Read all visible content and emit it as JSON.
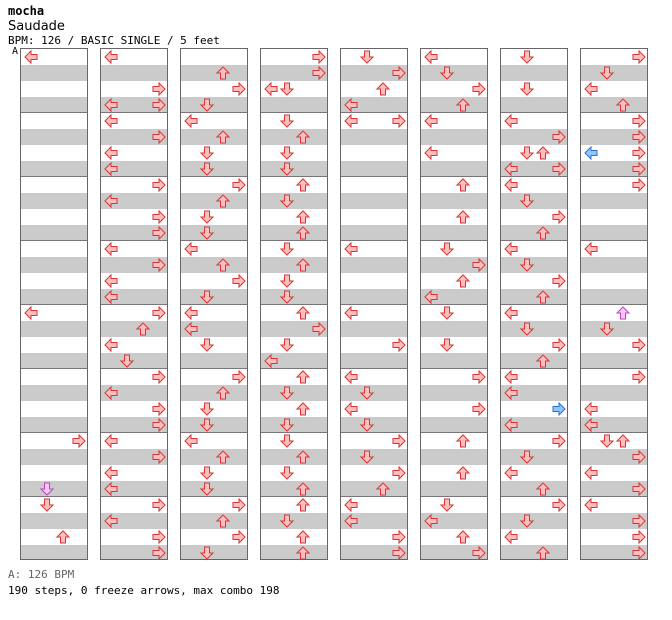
{
  "header": {
    "artist": "mocha",
    "title": "Saudade",
    "info": "BPM: 126 / BASIC SINGLE / 5 feet"
  },
  "chart": {
    "section_marker": "A",
    "columns": 8,
    "rows_per_column": 32,
    "colors": {
      "step": "#ffc0c0",
      "stroke": "#e03030",
      "blue": "#8cc8ff",
      "blue_stroke": "#3070d0",
      "purple": "#ffc8ff",
      "purple_stroke": "#c040c0"
    },
    "columns_data": [
      [
        {
          "r": 0,
          "d": "L"
        }
      ],
      [
        {
          "r": 0,
          "d": "L"
        },
        {
          "r": 2,
          "d": "R"
        },
        {
          "r": 3,
          "d": "L"
        },
        {
          "r": 3,
          "d": "R"
        },
        {
          "r": 4,
          "d": "L"
        },
        {
          "r": 5,
          "d": "R"
        },
        {
          "r": 6,
          "d": "L"
        },
        {
          "r": 7,
          "d": "L"
        },
        {
          "r": 8,
          "d": "R"
        },
        {
          "r": 9,
          "d": "L"
        },
        {
          "r": 10,
          "d": "R"
        },
        {
          "r": 11,
          "d": "R"
        },
        {
          "r": 12,
          "d": "L"
        },
        {
          "r": 13,
          "d": "R"
        },
        {
          "r": 14,
          "d": "L"
        },
        {
          "r": 15,
          "d": "L"
        },
        {
          "r": 16,
          "d": "R"
        },
        {
          "r": 17,
          "d": "U"
        },
        {
          "r": 18,
          "d": "L"
        },
        {
          "r": 19,
          "d": "D"
        },
        {
          "r": 20,
          "d": "R"
        },
        {
          "r": 21,
          "d": "L"
        },
        {
          "r": 22,
          "d": "R"
        },
        {
          "r": 23,
          "d": "R"
        },
        {
          "r": 24,
          "d": "L"
        },
        {
          "r": 25,
          "d": "R"
        },
        {
          "r": 26,
          "d": "L"
        },
        {
          "r": 27,
          "d": "L"
        },
        {
          "r": 28,
          "d": "R"
        },
        {
          "r": 29,
          "d": "L"
        },
        {
          "r": 30,
          "d": "R"
        },
        {
          "r": 31,
          "d": "R"
        }
      ],
      [
        {
          "r": 1,
          "d": "U"
        },
        {
          "r": 2,
          "d": "R"
        },
        {
          "r": 3,
          "d": "D"
        },
        {
          "r": 4,
          "d": "L"
        },
        {
          "r": 5,
          "d": "U"
        },
        {
          "r": 6,
          "d": "D"
        },
        {
          "r": 7,
          "d": "D"
        },
        {
          "r": 8,
          "d": "R"
        },
        {
          "r": 9,
          "d": "U"
        },
        {
          "r": 10,
          "d": "D"
        },
        {
          "r": 11,
          "d": "D"
        },
        {
          "r": 12,
          "d": "L"
        },
        {
          "r": 13,
          "d": "U"
        },
        {
          "r": 14,
          "d": "R"
        },
        {
          "r": 15,
          "d": "D"
        },
        {
          "r": 16,
          "d": "L"
        },
        {
          "r": 17,
          "d": "L"
        },
        {
          "r": 18,
          "d": "D"
        },
        {
          "r": 20,
          "d": "R"
        },
        {
          "r": 21,
          "d": "U"
        },
        {
          "r": 22,
          "d": "D"
        },
        {
          "r": 23,
          "d": "D"
        },
        {
          "r": 24,
          "d": "L"
        },
        {
          "r": 25,
          "d": "U"
        },
        {
          "r": 26,
          "d": "D"
        },
        {
          "r": 27,
          "d": "D"
        },
        {
          "r": 28,
          "d": "R"
        },
        {
          "r": 29,
          "d": "U"
        },
        {
          "r": 30,
          "d": "R"
        },
        {
          "r": 31,
          "d": "D"
        }
      ],
      [
        {
          "r": 0,
          "d": "R"
        },
        {
          "r": 1,
          "d": "R"
        },
        {
          "r": 2,
          "d": "L"
        },
        {
          "r": 2,
          "d": "D"
        },
        {
          "r": 4,
          "d": "D"
        },
        {
          "r": 5,
          "d": "U"
        },
        {
          "r": 6,
          "d": "D"
        },
        {
          "r": 7,
          "d": "D"
        },
        {
          "r": 8,
          "d": "U"
        },
        {
          "r": 9,
          "d": "D"
        },
        {
          "r": 10,
          "d": "U"
        },
        {
          "r": 11,
          "d": "U"
        },
        {
          "r": 12,
          "d": "D"
        },
        {
          "r": 13,
          "d": "U"
        },
        {
          "r": 14,
          "d": "D"
        },
        {
          "r": 15,
          "d": "D"
        },
        {
          "r": 16,
          "d": "U"
        },
        {
          "r": 17,
          "d": "R"
        },
        {
          "r": 18,
          "d": "D"
        },
        {
          "r": 19,
          "d": "L"
        },
        {
          "r": 20,
          "d": "U"
        },
        {
          "r": 21,
          "d": "D"
        },
        {
          "r": 22,
          "d": "U"
        },
        {
          "r": 23,
          "d": "D"
        },
        {
          "r": 24,
          "d": "D"
        },
        {
          "r": 25,
          "d": "U"
        },
        {
          "r": 26,
          "d": "D"
        },
        {
          "r": 27,
          "d": "U"
        },
        {
          "r": 28,
          "d": "U"
        },
        {
          "r": 29,
          "d": "D"
        },
        {
          "r": 30,
          "d": "U"
        },
        {
          "r": 31,
          "d": "U"
        }
      ],
      [
        {
          "r": 0,
          "d": "D"
        },
        {
          "r": 1,
          "d": "R"
        },
        {
          "r": 2,
          "d": "U"
        },
        {
          "r": 3,
          "d": "L"
        },
        {
          "r": 4,
          "d": "L"
        },
        {
          "r": 4,
          "d": "R"
        },
        {
          "r": 12,
          "d": "L"
        },
        {
          "r": 16,
          "d": "L"
        },
        {
          "r": 18,
          "d": "R"
        },
        {
          "r": 20,
          "d": "L"
        },
        {
          "r": 21,
          "d": "D"
        },
        {
          "r": 22,
          "d": "L"
        },
        {
          "r": 23,
          "d": "D"
        },
        {
          "r": 24,
          "d": "R"
        },
        {
          "r": 25,
          "d": "D"
        },
        {
          "r": 26,
          "d": "R"
        },
        {
          "r": 27,
          "d": "U"
        },
        {
          "r": 28,
          "d": "L"
        },
        {
          "r": 29,
          "d": "L"
        },
        {
          "r": 30,
          "d": "R"
        },
        {
          "r": 31,
          "d": "R"
        }
      ],
      [
        {
          "r": 0,
          "d": "L"
        },
        {
          "r": 1,
          "d": "D"
        },
        {
          "r": 2,
          "d": "R"
        },
        {
          "r": 3,
          "d": "U"
        },
        {
          "r": 4,
          "d": "L"
        },
        {
          "r": 6,
          "d": "L"
        },
        {
          "r": 8,
          "d": "U"
        },
        {
          "r": 10,
          "d": "U"
        },
        {
          "r": 12,
          "d": "D"
        },
        {
          "r": 13,
          "d": "R"
        },
        {
          "r": 14,
          "d": "U"
        },
        {
          "r": 15,
          "d": "L"
        },
        {
          "r": 16,
          "d": "D"
        },
        {
          "r": 18,
          "d": "D"
        },
        {
          "r": 20,
          "d": "R"
        },
        {
          "r": 22,
          "d": "R"
        },
        {
          "r": 24,
          "d": "U"
        },
        {
          "r": 26,
          "d": "U"
        },
        {
          "r": 28,
          "d": "D"
        },
        {
          "r": 29,
          "d": "L"
        },
        {
          "r": 30,
          "d": "U"
        },
        {
          "r": 31,
          "d": "R"
        }
      ],
      [
        {
          "r": 0,
          "d": "D"
        },
        {
          "r": 2,
          "d": "D"
        },
        {
          "r": 4,
          "d": "L"
        },
        {
          "r": 5,
          "d": "R"
        },
        {
          "r": 6,
          "d": "D"
        },
        {
          "r": 6,
          "d": "U"
        },
        {
          "r": 7,
          "d": "L"
        },
        {
          "r": 7,
          "d": "R"
        },
        {
          "r": 8,
          "d": "L"
        },
        {
          "r": 9,
          "d": "D"
        },
        {
          "r": 10,
          "d": "R"
        },
        {
          "r": 11,
          "d": "U"
        },
        {
          "r": 12,
          "d": "L"
        },
        {
          "r": 13,
          "d": "D"
        },
        {
          "r": 14,
          "d": "R"
        },
        {
          "r": 15,
          "d": "U"
        },
        {
          "r": 16,
          "d": "L"
        },
        {
          "r": 17,
          "d": "D"
        },
        {
          "r": 18,
          "d": "R"
        },
        {
          "r": 19,
          "d": "U"
        },
        {
          "r": 20,
          "d": "L"
        },
        {
          "r": 21,
          "d": "L"
        },
        {
          "r": 22,
          "d": "B"
        },
        {
          "r": 23,
          "d": "L"
        },
        {
          "r": 24,
          "d": "R"
        },
        {
          "r": 25,
          "d": "D"
        },
        {
          "r": 26,
          "d": "L"
        },
        {
          "r": 27,
          "d": "U"
        },
        {
          "r": 28,
          "d": "R"
        },
        {
          "r": 29,
          "d": "D"
        },
        {
          "r": 30,
          "d": "L"
        },
        {
          "r": 31,
          "d": "U"
        }
      ],
      [
        {
          "r": 0,
          "d": "R"
        },
        {
          "r": 1,
          "d": "D"
        },
        {
          "r": 2,
          "d": "L"
        },
        {
          "r": 3,
          "d": "U"
        },
        {
          "r": 4,
          "d": "R"
        },
        {
          "r": 5,
          "d": "R"
        },
        {
          "r": 6,
          "d": "B"
        },
        {
          "r": 6,
          "d": "R"
        },
        {
          "r": 7,
          "d": "R"
        },
        {
          "r": 8,
          "d": "R"
        },
        {
          "r": 12,
          "d": "L"
        },
        {
          "r": 16,
          "d": "P"
        },
        {
          "r": 17,
          "d": "D"
        },
        {
          "r": 18,
          "d": "R"
        },
        {
          "r": 20,
          "d": "R"
        },
        {
          "r": 22,
          "d": "L"
        },
        {
          "r": 23,
          "d": "L"
        },
        {
          "r": 24,
          "d": "D"
        },
        {
          "r": 24,
          "d": "U"
        },
        {
          "r": 25,
          "d": "R"
        },
        {
          "r": 26,
          "d": "L"
        },
        {
          "r": 27,
          "d": "R"
        },
        {
          "r": 28,
          "d": "L"
        },
        {
          "r": 29,
          "d": "R"
        },
        {
          "r": 30,
          "d": "R"
        },
        {
          "r": 31,
          "d": "R"
        }
      ]
    ],
    "extra_arrows": [
      {
        "c": 0,
        "r": 16,
        "d": "L"
      },
      {
        "c": 0,
        "r": 24,
        "d": "R"
      },
      {
        "c": 0,
        "r": 27,
        "d": "P"
      },
      {
        "c": 0,
        "r": 28,
        "d": "D"
      },
      {
        "c": 0,
        "r": 30,
        "d": "U"
      }
    ]
  },
  "footer": {
    "bpm_list": "A: 126 BPM",
    "stats": "190 steps, 0 freeze arrows, max combo 198"
  }
}
